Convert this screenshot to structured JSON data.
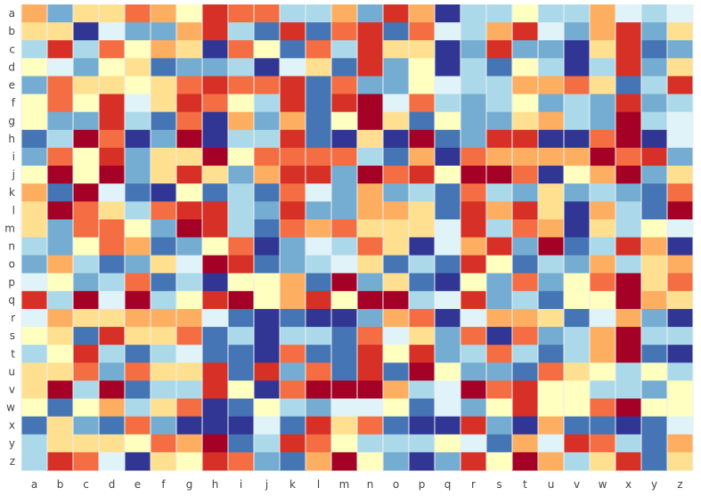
{
  "chart_data": {
    "type": "heatmap",
    "title": "",
    "xlabel": "",
    "ylabel": "",
    "x_categories": [
      "a",
      "b",
      "c",
      "d",
      "e",
      "f",
      "g",
      "h",
      "i",
      "j",
      "k",
      "l",
      "m",
      "n",
      "o",
      "p",
      "q",
      "r",
      "s",
      "t",
      "u",
      "v",
      "w",
      "x",
      "y",
      "z"
    ],
    "y_categories": [
      "a",
      "b",
      "c",
      "d",
      "e",
      "f",
      "g",
      "h",
      "i",
      "j",
      "k",
      "l",
      "m",
      "n",
      "o",
      "p",
      "q",
      "r",
      "s",
      "t",
      "u",
      "v",
      "w",
      "x",
      "y",
      "z"
    ],
    "value_range": [
      0,
      10
    ],
    "colorscale": [
      "#313695",
      "#4575b4",
      "#74add1",
      "#abd9e9",
      "#e0f3f8",
      "#ffffbf",
      "#fee090",
      "#fdae61",
      "#f46d43",
      "#d73027",
      "#a50026"
    ],
    "grid": true,
    "legend": "none",
    "z": [
      [
        7,
        2,
        6,
        6,
        8,
        7,
        5,
        9,
        8,
        8,
        3,
        3,
        7,
        2,
        9,
        7,
        0,
        3,
        3,
        5,
        3,
        3,
        7,
        4,
        3,
        4
      ],
      [
        6,
        6,
        0,
        4,
        2,
        2,
        7,
        9,
        3,
        1,
        9,
        1,
        8,
        9,
        1,
        8,
        4,
        3,
        7,
        9,
        4,
        2,
        7,
        9,
        2,
        6
      ],
      [
        3,
        9,
        3,
        8,
        5,
        7,
        6,
        0,
        8,
        5,
        1,
        8,
        3,
        9,
        6,
        6,
        0,
        2,
        9,
        2,
        2,
        0,
        6,
        9,
        1,
        2
      ],
      [
        5,
        4,
        2,
        5,
        6,
        1,
        2,
        2,
        3,
        0,
        4,
        6,
        1,
        9,
        2,
        5,
        0,
        3,
        1,
        5,
        3,
        0,
        3,
        9,
        2,
        6
      ],
      [
        2,
        8,
        6,
        6,
        5,
        6,
        8,
        9,
        8,
        8,
        9,
        1,
        8,
        2,
        2,
        5,
        4,
        3,
        3,
        7,
        7,
        8,
        6,
        1,
        3,
        9
      ],
      [
        5,
        8,
        5,
        9,
        4,
        6,
        9,
        8,
        5,
        3,
        9,
        1,
        9,
        10,
        4,
        8,
        3,
        2,
        3,
        5,
        2,
        3,
        2,
        9,
        2,
        3
      ],
      [
        5,
        2,
        2,
        9,
        3,
        1,
        8,
        0,
        7,
        2,
        7,
        1,
        5,
        10,
        6,
        1,
        5,
        2,
        2,
        6,
        7,
        3,
        2,
        10,
        3,
        4
      ],
      [
        1,
        3,
        10,
        8,
        0,
        2,
        10,
        0,
        3,
        3,
        9,
        1,
        0,
        6,
        0,
        10,
        1,
        2,
        9,
        9,
        0,
        0,
        8,
        10,
        0,
        4
      ],
      [
        2,
        8,
        5,
        9,
        2,
        6,
        6,
        10,
        5,
        8,
        8,
        8,
        8,
        3,
        1,
        7,
        0,
        8,
        7,
        7,
        7,
        7,
        10,
        8,
        9,
        2
      ],
      [
        5,
        10,
        5,
        10,
        2,
        6,
        9,
        6,
        2,
        7,
        9,
        9,
        2,
        10,
        8,
        9,
        5,
        10,
        10,
        8,
        0,
        5,
        7,
        10,
        2,
        6
      ]
    ],
    "z_rows_11_to_26": [
      [
        7,
        1,
        10,
        4,
        1,
        0,
        5,
        1,
        3,
        1,
        8,
        4,
        2,
        7,
        2,
        3,
        1,
        8,
        3,
        2,
        6,
        2,
        3,
        2,
        1,
        8
      ],
      [
        6,
        10,
        8,
        6,
        3,
        8,
        9,
        9,
        3,
        2,
        9,
        2,
        2,
        7,
        7,
        6,
        1,
        9,
        7,
        9,
        6,
        0,
        7,
        3,
        1,
        10
      ],
      [
        6,
        2,
        8,
        8,
        5,
        2,
        10,
        9,
        3,
        1,
        8,
        7,
        8,
        6,
        6,
        6,
        4,
        9,
        3,
        8,
        7,
        0,
        6,
        3,
        5,
        4
      ],
      [
        3,
        2,
        5,
        8,
        7,
        1,
        2,
        5,
        8,
        0,
        2,
        4,
        3,
        8,
        6,
        0,
        4,
        7,
        9,
        2,
        10,
        1,
        3,
        9,
        7,
        0
      ],
      [
        2,
        7,
        3,
        1,
        2,
        6,
        4,
        10,
        9,
        1,
        2,
        3,
        4,
        6,
        1,
        3,
        1,
        9,
        5,
        1,
        3,
        2,
        7,
        3,
        6,
        7
      ],
      [
        4,
        5,
        2,
        3,
        8,
        1,
        3,
        0,
        5,
        5,
        7,
        1,
        10,
        2,
        6,
        1,
        0,
        5,
        2,
        8,
        2,
        5,
        8,
        10,
        6,
        8
      ],
      [
        9,
        3,
        10,
        4,
        10,
        3,
        5,
        9,
        10,
        5,
        7,
        9,
        5,
        10,
        10,
        3,
        4,
        9,
        2,
        3,
        1,
        5,
        5,
        10,
        7,
        6
      ],
      [
        4,
        7,
        6,
        6,
        7,
        7,
        7,
        4,
        1,
        0,
        1,
        0,
        0,
        2,
        7,
        8,
        0,
        4,
        7,
        7,
        6,
        1,
        4,
        7,
        2,
        0
      ],
      [
        5,
        6,
        1,
        9,
        6,
        6,
        8,
        1,
        3,
        0,
        3,
        3,
        1,
        8,
        4,
        6,
        2,
        8,
        0,
        8,
        2,
        3,
        7,
        10,
        3,
        3
      ],
      [
        3,
        5,
        9,
        3,
        1,
        3,
        4,
        1,
        1,
        0,
        8,
        1,
        1,
        9,
        5,
        9,
        2,
        3,
        8,
        3,
        1,
        3,
        7,
        10,
        1,
        0
      ],
      [
        6,
        6,
        8,
        2,
        8,
        6,
        6,
        9,
        1,
        9,
        2,
        8,
        1,
        9,
        1,
        10,
        5,
        2,
        2,
        1,
        8,
        6,
        5,
        3,
        5,
        3
      ],
      [
        6,
        10,
        3,
        10,
        1,
        3,
        3,
        9,
        5,
        0,
        8,
        10,
        10,
        10,
        7,
        3,
        4,
        10,
        8,
        9,
        5,
        5,
        3,
        3,
        2,
        5
      ],
      [
        5,
        1,
        5,
        7,
        3,
        6,
        8,
        0,
        1,
        5,
        3,
        2,
        4,
        4,
        5,
        1,
        4,
        2,
        5,
        9,
        5,
        5,
        8,
        10,
        5,
        5
      ],
      [
        1,
        6,
        2,
        1,
        8,
        2,
        0,
        0,
        0,
        4,
        1,
        9,
        6,
        8,
        1,
        0,
        0,
        9,
        2,
        0,
        7,
        1,
        1,
        0,
        1,
        4
      ],
      [
        3,
        6,
        6,
        6,
        5,
        8,
        7,
        10,
        1,
        3,
        9,
        8,
        5,
        3,
        3,
        3,
        5,
        4,
        1,
        7,
        4,
        9,
        8,
        3,
        1,
        7
      ],
      [
        3,
        9,
        8,
        4,
        0,
        6,
        5,
        9,
        8,
        2,
        1,
        7,
        10,
        5,
        2,
        0,
        2,
        9,
        5,
        10,
        7,
        3,
        6,
        9,
        1,
        6
      ]
    ]
  }
}
